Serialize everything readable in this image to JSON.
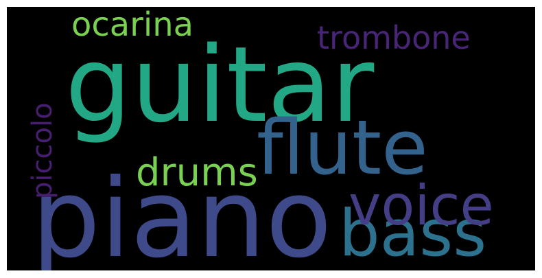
{
  "words": [
    {
      "text": "guitar",
      "color": "#22a884"
    },
    {
      "text": "piano",
      "color": "#3e4a89"
    },
    {
      "text": "flute",
      "color": "#33638d"
    },
    {
      "text": "bass",
      "color": "#2c728e"
    },
    {
      "text": "voice",
      "color": "#433e85"
    },
    {
      "text": "drums",
      "color": "#7ad151"
    },
    {
      "text": "ocarina",
      "color": "#7ad151"
    },
    {
      "text": "trombone",
      "color": "#482576"
    },
    {
      "text": "piccolo",
      "color": "#481f70"
    }
  ]
}
